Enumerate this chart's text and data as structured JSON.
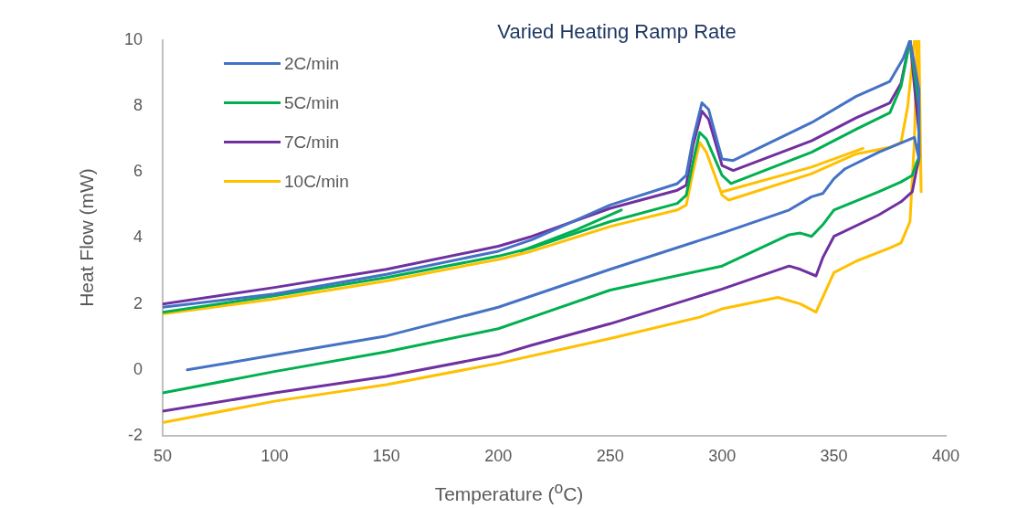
{
  "chart_data": {
    "type": "line",
    "title": "Varied Heating Ramp Rate",
    "xlabel": "Temperature ($^{o}$C)",
    "ylabel": "Heat Flow (mW)",
    "xlim": [
      50,
      400
    ],
    "xticks": [
      50,
      100,
      150,
      200,
      250,
      300,
      350,
      400
    ],
    "ylim": [
      -2,
      10
    ],
    "yticks": [
      -2,
      0,
      2,
      4,
      6,
      8,
      10
    ],
    "legend": "top left",
    "series": [
      {
        "name": "2C/min",
        "color": "#4472c4",
        "x": [
          50,
          100,
          150,
          200,
          215,
          250,
          280,
          284,
          287,
          291,
          294,
          300,
          305,
          340,
          360,
          375,
          381,
          384,
          388,
          388,
          386,
          370,
          355,
          350,
          345,
          340,
          330,
          300,
          250,
          200,
          150,
          100,
          61
        ],
        "values": [
          1.9,
          2.3,
          2.9,
          3.6,
          3.95,
          5.0,
          5.65,
          5.9,
          7.0,
          8.1,
          7.9,
          6.4,
          6.35,
          7.5,
          8.3,
          8.75,
          9.45,
          10,
          8.5,
          6.4,
          7.05,
          6.6,
          6.1,
          5.8,
          5.35,
          5.25,
          4.85,
          4.15,
          3.05,
          1.9,
          1.03,
          0.45,
          0.0
        ]
      },
      {
        "name": "5C/min",
        "color": "#00b050",
        "x": [
          50,
          100,
          150,
          200,
          215,
          250,
          280,
          284,
          287,
          290,
          293,
          300,
          304,
          340,
          360,
          375,
          380,
          384,
          388,
          388,
          387,
          385,
          380,
          370,
          350,
          345,
          340,
          335,
          330,
          300,
          250,
          215,
          200,
          150,
          100,
          50
        ],
        "values": [
          1.75,
          2.25,
          2.8,
          3.45,
          3.7,
          4.5,
          5.05,
          5.3,
          6.3,
          7.2,
          7.0,
          5.9,
          5.65,
          6.6,
          7.3,
          7.8,
          8.6,
          10,
          8.0,
          6.45,
          6.3,
          5.9,
          5.7,
          5.4,
          4.85,
          4.4,
          4.05,
          4.15,
          4.1,
          3.15,
          2.42,
          1.6,
          1.25,
          0.55,
          -0.05,
          -0.7
        ]
      },
      {
        "name": "7C/min",
        "color": "#7030a0",
        "x": [
          50,
          100,
          150,
          200,
          215,
          250,
          280,
          284,
          287,
          291,
          294,
          300,
          305,
          340,
          360,
          375,
          380,
          384,
          388,
          388,
          387,
          385,
          380,
          370,
          350,
          345,
          342,
          335,
          330,
          300,
          250,
          215,
          200,
          150,
          100,
          50
        ],
        "values": [
          2.0,
          2.5,
          3.05,
          3.75,
          4.05,
          4.9,
          5.45,
          5.6,
          6.8,
          7.85,
          7.6,
          6.2,
          6.05,
          6.95,
          7.65,
          8.1,
          8.7,
          10,
          7.2,
          6.4,
          6.1,
          5.4,
          5.1,
          4.7,
          4.05,
          3.4,
          2.85,
          3.05,
          3.15,
          2.45,
          1.4,
          0.75,
          0.45,
          -0.2,
          -0.7,
          -1.25
        ]
      },
      {
        "name": "10C/min",
        "color": "#ffc000",
        "x": [
          50,
          100,
          150,
          200,
          215,
          250,
          280,
          284,
          287,
          290,
          293,
          300,
          303,
          340,
          360,
          375,
          380,
          383,
          386,
          388,
          389,
          387,
          386,
          384,
          380,
          375,
          360,
          350,
          345,
          342,
          335,
          325,
          300,
          290,
          250,
          200,
          150,
          100,
          50
        ],
        "values": [
          1.7,
          2.15,
          2.7,
          3.35,
          3.6,
          4.35,
          4.85,
          5.0,
          6.0,
          6.9,
          6.6,
          5.3,
          5.15,
          5.95,
          6.55,
          6.75,
          6.9,
          8.0,
          10,
          10,
          5.4,
          10,
          7.0,
          4.5,
          3.85,
          3.7,
          3.3,
          2.95,
          2.2,
          1.75,
          2.0,
          2.2,
          1.85,
          1.6,
          0.95,
          0.2,
          -0.45,
          -0.95,
          -1.6
        ]
      },
      {
        "color": "#00b050",
        "x": [
          210,
          235,
          255
        ],
        "values": [
          3.6,
          4.25,
          4.85
        ]
      },
      {
        "color": "#ffc000",
        "x": [
          300,
          340,
          363
        ],
        "values": [
          5.4,
          6.15,
          6.72
        ]
      }
    ]
  }
}
